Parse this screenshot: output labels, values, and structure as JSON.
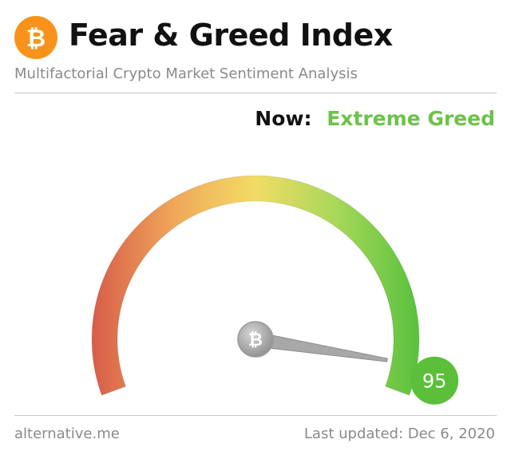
{
  "header": {
    "title": "Fear & Greed Index",
    "subtitle": "Multifactorial Crypto Market Sentiment Analysis",
    "logo_icon": "bitcoin-icon",
    "logo_symbol": "₿",
    "logo_color": "#f7931a"
  },
  "status": {
    "now_label": "Now:",
    "classification": "Extreme Greed",
    "classification_color": "#6cc24a"
  },
  "gauge": {
    "value": 95,
    "min": 0,
    "max": 100,
    "needle_icon": "bitcoin-icon",
    "needle_symbol": "₿",
    "value_badge_color": "#5cbf3a",
    "gradient_colors": [
      "#d8604a",
      "#f0a85a",
      "#f2dc64",
      "#a8d85a",
      "#5cc23e"
    ]
  },
  "footer": {
    "source": "alternative.me",
    "last_updated": "Last updated: Dec 6, 2020"
  }
}
